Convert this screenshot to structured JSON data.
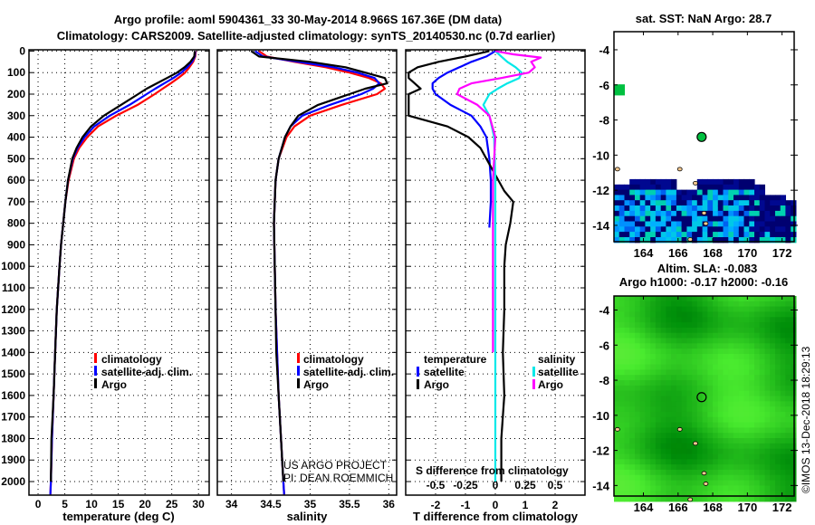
{
  "figure": {
    "title_line1": "Argo profile: aoml 5904361_33 30-May-2014 8.966S 167.36E (DM data)",
    "title_line2": "Climatology: CARS2009. Satellite-adjusted climatology: synTS_20140530.nc (0.7d earlier)",
    "credit_line1": "US ARGO PROJECT",
    "credit_line2": "PI: DEAN ROEMMICH",
    "timestamp": "©IMOS 13-Dec-2018 18:29:13"
  },
  "colors": {
    "climatology": "#ff0000",
    "satellite": "#0000ff",
    "argo": "#000000",
    "sal_satellite": "#00e8e8",
    "sal_argo": "#ff00ff"
  },
  "chart_data": [
    {
      "id": "temperature",
      "type": "line",
      "xlabel": "temperature (deg C)",
      "ylabel": "",
      "xlim": [
        -1.7,
        32.0
      ],
      "ylim": [
        2063,
        -6
      ],
      "xticks": [
        0,
        5,
        10,
        15,
        20,
        25,
        30
      ],
      "yticks": [
        0,
        100,
        200,
        300,
        400,
        500,
        600,
        700,
        800,
        900,
        1000,
        1100,
        1200,
        1300,
        1400,
        1500,
        1600,
        1700,
        1800,
        1900,
        2000
      ],
      "grid": true,
      "legend": [
        "climatology",
        "satellite-adj. clim.",
        "Argo"
      ],
      "depth": [
        0,
        25,
        50,
        75,
        100,
        125,
        150,
        175,
        200,
        250,
        300,
        350,
        400,
        450,
        500,
        600,
        700,
        800,
        900,
        1000,
        1200,
        1400,
        1600,
        1800,
        2000,
        2060
      ],
      "series": [
        {
          "name": "climatology",
          "values": [
            29.5,
            29.4,
            29.0,
            28.3,
            27.5,
            26.2,
            24.8,
            23.3,
            21.8,
            18.6,
            14.6,
            11.2,
            9.2,
            7.7,
            6.7,
            5.7,
            5.1,
            4.7,
            4.3,
            4.0,
            3.5,
            3.2,
            2.9,
            2.6,
            2.4,
            2.3
          ]
        },
        {
          "name": "satellite-adj. clim.",
          "values": [
            29.4,
            29.3,
            28.8,
            27.9,
            26.8,
            25.3,
            23.6,
            21.9,
            20.3,
            17.1,
            13.4,
            10.5,
            8.7,
            7.4,
            6.5,
            5.6,
            5.1,
            4.7,
            4.3,
            4.0,
            3.5,
            3.2,
            2.9,
            2.6,
            2.4,
            2.3
          ]
        },
        {
          "name": "Argo",
          "values": [
            29.3,
            29.2,
            28.5,
            27.4,
            26.0,
            24.1,
            22.2,
            20.3,
            18.7,
            15.5,
            12.3,
            9.9,
            8.3,
            7.2,
            6.4,
            5.6,
            5.1,
            4.7,
            4.3,
            4.0,
            3.5,
            3.2,
            2.9,
            2.5,
            2.4,
            null
          ]
        }
      ]
    },
    {
      "id": "salinity",
      "type": "line",
      "xlabel": "salinity",
      "xlim": [
        33.82,
        36.1
      ],
      "ylim": [
        2063,
        -6
      ],
      "xticks": [
        34,
        34.5,
        35,
        35.5,
        36
      ],
      "grid": true,
      "legend": [
        "climatology",
        "satellite-adj. clim.",
        "Argo"
      ],
      "depth": [
        0,
        25,
        50,
        75,
        100,
        125,
        150,
        175,
        200,
        250,
        300,
        350,
        400,
        500,
        600,
        800,
        1000,
        1200,
        1400,
        1600,
        1800,
        2000,
        2060
      ],
      "series": [
        {
          "name": "climatology",
          "values": [
            34.35,
            34.45,
            34.8,
            35.2,
            35.5,
            35.75,
            35.9,
            35.95,
            35.85,
            35.4,
            35.0,
            34.8,
            34.7,
            34.6,
            34.56,
            34.54,
            34.55,
            34.56,
            34.58,
            34.6,
            34.63,
            34.66,
            34.67
          ]
        },
        {
          "name": "satellite-adj. clim.",
          "values": [
            34.3,
            34.4,
            34.85,
            35.3,
            35.6,
            35.82,
            35.88,
            35.8,
            35.65,
            35.25,
            34.9,
            34.75,
            34.68,
            34.6,
            34.56,
            34.54,
            34.55,
            34.56,
            34.58,
            34.6,
            34.63,
            34.66,
            34.67
          ]
        },
        {
          "name": "Argo",
          "values": [
            34.25,
            34.35,
            35.0,
            35.45,
            35.7,
            35.95,
            35.98,
            35.7,
            35.5,
            35.1,
            34.85,
            34.75,
            34.68,
            34.6,
            34.56,
            34.54,
            34.55,
            34.56,
            34.57,
            34.6,
            34.63,
            34.66,
            null
          ]
        }
      ]
    },
    {
      "id": "difference",
      "type": "line",
      "xlabel": "T difference from climatology",
      "x2label": "S difference from climatology",
      "xlim": [
        -3,
        3
      ],
      "x2lim": [
        -0.75,
        0.75
      ],
      "xticks": [
        -2,
        -1,
        0,
        1,
        2
      ],
      "x2ticks": [
        -0.5,
        -0.25,
        0,
        0.25,
        0.5
      ],
      "x2ticklabels": [
        "-0.5",
        "-0.25",
        "0",
        "0.25",
        "0.5"
      ],
      "grid": true,
      "legend": {
        "temperature_heading": "temperature",
        "salinity_heading": "salinity",
        "satellite": "satellite",
        "argo": "Argo"
      },
      "series": [
        {
          "name": "T satellite",
          "axis": "T",
          "depth": [
            0,
            25,
            50,
            75,
            100,
            125,
            150,
            175,
            200,
            250,
            300,
            350,
            400,
            500,
            600,
            700,
            820
          ],
          "values": [
            0.0,
            -0.3,
            -0.8,
            -1.2,
            -1.6,
            -1.9,
            -2.1,
            -2.1,
            -2.0,
            -1.5,
            -0.8,
            -0.5,
            -0.3,
            -0.2,
            -0.15,
            -0.15,
            -0.2
          ]
        },
        {
          "name": "T Argo",
          "axis": "T",
          "depth": [
            0,
            25,
            50,
            75,
            100,
            125,
            150,
            175,
            200,
            250,
            300,
            350,
            400,
            450,
            500,
            600,
            650,
            700,
            800,
            900,
            1000,
            1200,
            1400,
            1600,
            1800,
            2000
          ],
          "values": [
            -0.2,
            -1.0,
            -1.9,
            -2.6,
            -2.9,
            -2.9,
            -2.7,
            -2.5,
            -2.9,
            -2.9,
            -2.9,
            -1.6,
            -0.9,
            -0.5,
            -0.3,
            0.1,
            0.3,
            0.6,
            0.5,
            0.35,
            0.3,
            0.3,
            0.25,
            0.3,
            0.2,
            0.2
          ]
        },
        {
          "name": "S satellite",
          "axis": "S",
          "depth": [
            0,
            25,
            50,
            75,
            100,
            125,
            150,
            175,
            200,
            250,
            300,
            400,
            600,
            1000,
            1500,
            2000
          ],
          "values": [
            0.0,
            0.05,
            0.1,
            0.17,
            0.22,
            0.2,
            0.1,
            0.02,
            -0.05,
            -0.1,
            -0.05,
            -0.01,
            0.0,
            0.0,
            0.0,
            0.0
          ]
        },
        {
          "name": "S Argo",
          "axis": "S",
          "depth": [
            0,
            15,
            30,
            50,
            75,
            100,
            125,
            150,
            175,
            200,
            250,
            300,
            400,
            600,
            1000,
            1400
          ],
          "values": [
            0.0,
            0.15,
            0.38,
            0.3,
            0.33,
            0.28,
            0.05,
            -0.2,
            -0.3,
            -0.32,
            -0.15,
            -0.05,
            0.0,
            -0.02,
            -0.02,
            -0.02
          ]
        }
      ]
    },
    {
      "id": "sst-map",
      "type": "heatmap",
      "title": "sat. SST: NaN Argo: 28.7",
      "xlim": [
        162.3,
        172.7
      ],
      "ylim": [
        -2.97,
        -14.93
      ],
      "xticks": [
        164,
        166,
        168,
        170,
        172
      ],
      "yticks": [
        -4,
        -6,
        -8,
        -10,
        -12,
        -14
      ],
      "float_position": {
        "lon": 167.36,
        "lat": -8.966
      }
    },
    {
      "id": "sla-map",
      "type": "heatmap",
      "title_line1": "Altim. SLA: -0.083",
      "title_line2": "Argo h1000: -0.17 h2000: -0.16",
      "xlim": [
        162.3,
        172.7
      ],
      "ylim": [
        -3.2,
        -14.6
      ],
      "xticks": [
        164,
        166,
        168,
        170,
        172
      ],
      "yticks": [
        -4,
        -6,
        -8,
        -10,
        -12,
        -14
      ],
      "float_position": {
        "lon": 167.36,
        "lat": -8.966
      }
    }
  ]
}
